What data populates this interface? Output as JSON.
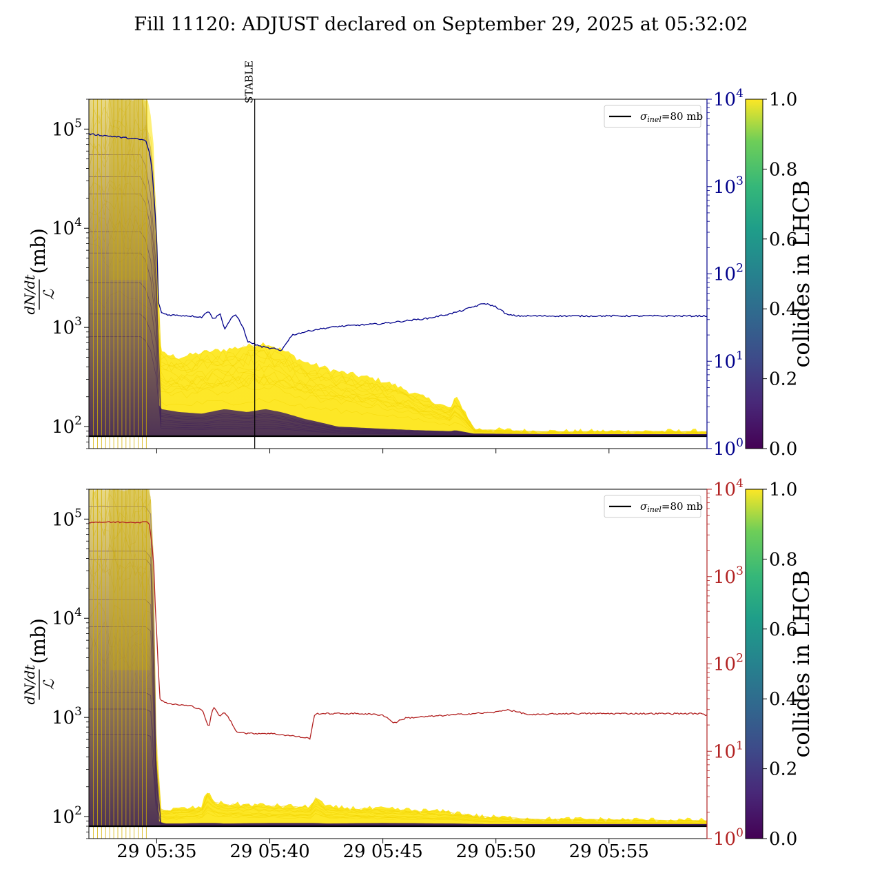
{
  "figure": {
    "title": "Fill 11120: ADJUST declared on September 29, 2025 at 05:32:02"
  },
  "chart_data": [
    {
      "type": "line",
      "panel": "top",
      "ylabel": "(mb)",
      "ylabel_math": "dN/dt / ℒ",
      "yscale": "log",
      "ylim": [
        60,
        200000
      ],
      "yticks": [
        "10^2",
        "10^3",
        "10^4",
        "10^5"
      ],
      "right_axis": {
        "scale": "log",
        "ylim": [
          1,
          10000
        ],
        "ticks": [
          "10^0",
          "10^1",
          "10^2",
          "10^3",
          "10^4"
        ],
        "color": "#00008b"
      },
      "xlim": [
        "05:32:00",
        "05:59:20"
      ],
      "xticks": [
        "29 05:35",
        "29 05:40",
        "29 05:45",
        "29 05:50",
        "29 05:55"
      ],
      "xtick_labels_visible": false,
      "vertical_marker": {
        "label": "STABLE",
        "x": "05:39:20"
      },
      "legend": {
        "entries": [
          {
            "label": "=80 mb",
            "symbol": "σ",
            "subscript": "inel"
          }
        ],
        "position": "upper right"
      },
      "reference_line": {
        "name": "σinel=80 mb",
        "y": 80,
        "color": "#000000"
      },
      "right_series": {
        "color": "#00008b",
        "x_min": [
          0,
          2.5,
          2.7,
          2.9,
          3.05,
          3.2,
          3.5,
          4.5,
          5.0,
          5.3,
          5.5,
          5.8,
          6.0,
          6.3,
          6.5,
          6.8,
          7.0,
          7.5,
          8.0,
          8.2,
          8.5,
          9.0,
          10.0,
          11.0,
          12.0,
          13.0,
          14.0,
          15.0,
          16.0,
          16.5,
          17.0,
          17.5,
          18.0,
          18.5,
          19.0,
          19.5,
          20.0,
          21.0,
          23.0,
          25.0,
          27.0,
          27.3
        ],
        "values": [
          4000,
          3400,
          2300,
          600,
          50,
          36,
          34,
          33,
          32,
          38,
          30,
          35,
          23,
          31,
          34,
          25,
          17,
          15,
          14,
          14,
          13,
          20,
          23,
          25,
          26,
          27,
          29,
          31,
          35,
          38,
          42,
          46,
          42,
          34,
          33,
          33,
          33,
          33,
          33,
          33,
          33,
          33
        ]
      },
      "band": {
        "color_by": "collides in LHCB",
        "colormap": "viridis",
        "x_min": [
          0,
          2.4,
          2.6,
          3.0,
          3.2,
          4.0,
          5.0,
          6.0,
          7.0,
          7.8,
          8.5,
          9.5,
          11.0,
          13.0,
          14.5,
          16.0,
          16.2,
          17.0,
          20.0,
          27.3
        ],
        "noncolliding_upper": [
          200000,
          200000,
          100000,
          180,
          150,
          140,
          135,
          150,
          140,
          150,
          140,
          120,
          100,
          95,
          92,
          90,
          92,
          85,
          84,
          84
        ],
        "colliding_upper": [
          200000,
          200000,
          200000,
          1200,
          550,
          500,
          560,
          600,
          650,
          700,
          600,
          450,
          360,
          290,
          210,
          150,
          200,
          95,
          90,
          90
        ]
      }
    },
    {
      "type": "line",
      "panel": "bottom",
      "ylabel": "(mb)",
      "ylabel_math": "dN/dt / ℒ",
      "yscale": "log",
      "ylim": [
        60,
        200000
      ],
      "yticks": [
        "10^2",
        "10^3",
        "10^4",
        "10^5"
      ],
      "right_axis": {
        "scale": "log",
        "ylim": [
          1,
          10000
        ],
        "ticks": [
          "10^0",
          "10^1",
          "10^2",
          "10^3",
          "10^4"
        ],
        "color": "#b22222"
      },
      "xlim": [
        "05:32:00",
        "05:59:20"
      ],
      "xticks": [
        "29 05:35",
        "29 05:40",
        "29 05:45",
        "29 05:50",
        "29 05:55"
      ],
      "xtick_labels_visible": true,
      "legend": {
        "entries": [
          {
            "label": "=80 mb",
            "symbol": "σ",
            "subscript": "inel"
          }
        ],
        "position": "upper right"
      },
      "reference_line": {
        "name": "σinel=80 mb",
        "y": 80,
        "color": "#000000"
      },
      "right_series": {
        "color": "#b22222",
        "x_min": [
          0,
          2.5,
          2.65,
          2.8,
          2.95,
          3.1,
          3.5,
          4.5,
          5.0,
          5.3,
          5.5,
          5.8,
          6.0,
          6.5,
          7.0,
          8.0,
          9.0,
          9.8,
          10.0,
          11.0,
          12.0,
          13.0,
          13.5,
          14.0,
          15.0,
          16.0,
          17.0,
          18.0,
          18.5,
          19.5,
          21.0,
          23.0,
          25.0,
          27.0,
          27.3
        ],
        "values": [
          4200,
          4200,
          4200,
          2200,
          300,
          40,
          35,
          33,
          30,
          18,
          32,
          25,
          28,
          17,
          16,
          16,
          15,
          14,
          27,
          27,
          27,
          26,
          21,
          24,
          25,
          26,
          27,
          28,
          30,
          26,
          27,
          27,
          27,
          27,
          26
        ]
      },
      "band": {
        "color_by": "collides in LHCB",
        "colormap": "viridis",
        "x_min": [
          0,
          2.4,
          2.7,
          2.9,
          3.1,
          3.3,
          4.0,
          5.0,
          5.2,
          5.6,
          6.0,
          8.0,
          9.8,
          10.0,
          10.5,
          13.0,
          16.0,
          17.5,
          20.0,
          27.3
        ],
        "noncolliding_upper": [
          200000,
          200000,
          200000,
          600,
          90,
          85,
          85,
          86,
          86,
          86,
          85,
          86,
          86,
          86,
          85,
          86,
          85,
          84,
          84,
          84
        ],
        "colliding_upper": [
          200000,
          200000,
          200000,
          1000,
          130,
          115,
          120,
          125,
          180,
          140,
          135,
          130,
          125,
          160,
          125,
          120,
          112,
          100,
          95,
          92
        ]
      }
    }
  ],
  "colorbars": [
    {
      "label": "collides in LHCB",
      "ticks": [
        "0.0",
        "0.2",
        "0.4",
        "0.6",
        "0.8",
        "1.0"
      ],
      "range": [
        0,
        1
      ]
    },
    {
      "label": "collides in LHCB",
      "ticks": [
        "0.0",
        "0.2",
        "0.4",
        "0.6",
        "0.8",
        "1.0"
      ],
      "range": [
        0,
        1
      ]
    }
  ],
  "colors": {
    "viridis_low": "#440154",
    "viridis_mid": "#21918c",
    "viridis_high": "#fde725",
    "top_right_axis": "#00008b",
    "bottom_right_axis": "#b22222"
  }
}
